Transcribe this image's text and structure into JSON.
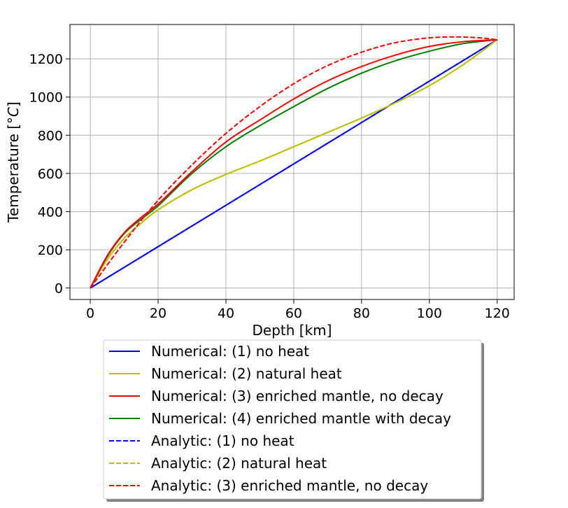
{
  "chart_data": {
    "type": "line",
    "title": "",
    "xlabel": "Depth [km]",
    "ylabel": "Temperature [",
    "ylabel_symbol": "°C",
    "ylabel_close": "]",
    "xlim": [
      -6,
      125
    ],
    "ylim": [
      -60,
      1380
    ],
    "xticks": [
      0,
      20,
      40,
      60,
      80,
      100,
      120
    ],
    "yticks": [
      0,
      200,
      400,
      600,
      800,
      1000,
      1200
    ],
    "grid": true,
    "legend_placement": "below",
    "series": [
      {
        "name": "Numerical: (1) no heat",
        "color": "#0000ff",
        "style": "solid",
        "x": [
          0,
          120
        ],
        "y": [
          0,
          1300
        ]
      },
      {
        "name": "Numerical: (2) natural heat",
        "color": "#bfbf00",
        "style": "solid",
        "x": [
          0,
          5,
          10,
          15,
          20,
          30,
          40,
          50,
          60,
          70,
          80,
          90,
          100,
          110,
          120
        ],
        "y": [
          0,
          150,
          260,
          340,
          410,
          515,
          595,
          665,
          740,
          815,
          890,
          970,
          1060,
          1170,
          1300
        ]
      },
      {
        "name": "Numerical: (3) enriched mantle, no decay",
        "color": "#ff0000",
        "style": "solid",
        "x": [
          0,
          5,
          10,
          15,
          20,
          30,
          40,
          50,
          60,
          70,
          80,
          90,
          100,
          110,
          120
        ],
        "y": [
          0,
          170,
          290,
          370,
          440,
          610,
          765,
          880,
          990,
          1085,
          1160,
          1220,
          1265,
          1290,
          1300
        ]
      },
      {
        "name": "Numerical: (4) enriched mantle with decay",
        "color": "#008000",
        "style": "solid",
        "x": [
          0,
          5,
          10,
          15,
          20,
          30,
          40,
          50,
          60,
          70,
          80,
          90,
          100,
          110,
          120
        ],
        "y": [
          0,
          165,
          285,
          360,
          430,
          600,
          740,
          850,
          950,
          1045,
          1125,
          1190,
          1240,
          1280,
          1300
        ]
      },
      {
        "name": "Analytic: (1) no heat",
        "color": "#0000ff",
        "style": "dashed",
        "x": [
          0,
          120
        ],
        "y": [
          0,
          1300
        ]
      },
      {
        "name": "Analytic: (2) natural heat",
        "color": "#bfbf00",
        "style": "dashed",
        "x": [
          0,
          5,
          10,
          15,
          20,
          30,
          40,
          50,
          60,
          70,
          80,
          90,
          100,
          110,
          120
        ],
        "y": [
          0,
          150,
          260,
          340,
          410,
          515,
          595,
          665,
          740,
          815,
          890,
          970,
          1060,
          1170,
          1300
        ]
      },
      {
        "name": "Analytic: (3) enriched mantle, no decay",
        "color": "#ff0000",
        "style": "dashed",
        "x": [
          0,
          10,
          20,
          30,
          40,
          50,
          60,
          70,
          80,
          90,
          100,
          108,
          115,
          120
        ],
        "y": [
          0,
          240,
          460,
          645,
          810,
          950,
          1070,
          1165,
          1235,
          1285,
          1310,
          1315,
          1310,
          1300
        ]
      }
    ]
  }
}
